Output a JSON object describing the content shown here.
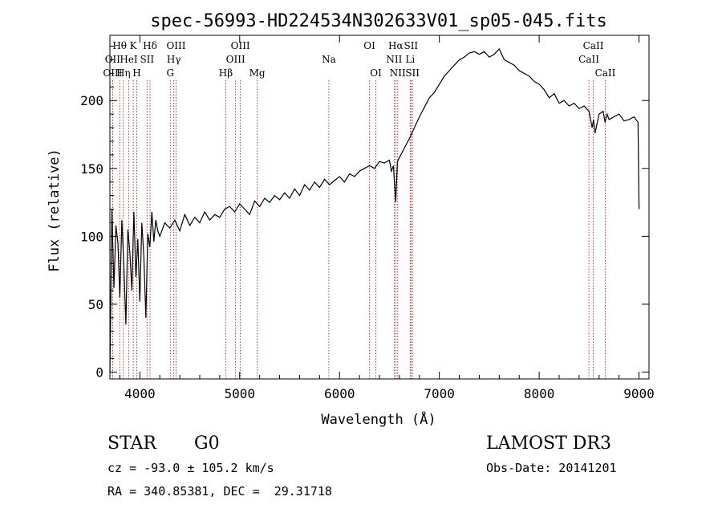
{
  "chart_data": {
    "type": "line",
    "title": "spec-56993-HD224534N302633V01_sp05-045.fits",
    "xlabel": "Wavelength (Å)",
    "ylabel": "Flux (relative)",
    "xlim": [
      3700,
      9100
    ],
    "ylim": [
      -5,
      248
    ],
    "x_ticks": [
      4000,
      5000,
      6000,
      7000,
      8000,
      9000
    ],
    "y_ticks": [
      0,
      50,
      100,
      150,
      200
    ],
    "grid": false,
    "series": [
      {
        "name": "flux",
        "x": [
          3700,
          3720,
          3740,
          3760,
          3780,
          3800,
          3820,
          3840,
          3860,
          3880,
          3900,
          3920,
          3940,
          3960,
          3980,
          4000,
          4020,
          4040,
          4060,
          4080,
          4100,
          4120,
          4140,
          4160,
          4180,
          4200,
          4250,
          4300,
          4350,
          4400,
          4450,
          4500,
          4550,
          4600,
          4650,
          4700,
          4750,
          4800,
          4850,
          4900,
          4950,
          5000,
          5050,
          5100,
          5150,
          5200,
          5250,
          5300,
          5350,
          5400,
          5450,
          5500,
          5550,
          5600,
          5650,
          5700,
          5750,
          5800,
          5850,
          5900,
          5950,
          6000,
          6050,
          6100,
          6150,
          6200,
          6250,
          6300,
          6350,
          6400,
          6450,
          6500,
          6520,
          6540,
          6563,
          6580,
          6600,
          6650,
          6700,
          6750,
          6800,
          6850,
          6900,
          6950,
          7000,
          7050,
          7100,
          7150,
          7200,
          7250,
          7300,
          7350,
          7400,
          7450,
          7500,
          7550,
          7600,
          7650,
          7700,
          7750,
          7800,
          7850,
          7900,
          7950,
          8000,
          8050,
          8100,
          8150,
          8200,
          8250,
          8300,
          8350,
          8400,
          8450,
          8500,
          8530,
          8545,
          8560,
          8600,
          8640,
          8660,
          8680,
          8700,
          8750,
          8800,
          8850,
          8900,
          8950,
          8990,
          9000
        ],
        "y": [
          0,
          120,
          62,
          108,
          95,
          55,
          112,
          78,
          35,
          105,
          88,
          60,
          118,
          70,
          98,
          52,
          110,
          85,
          40,
          102,
          92,
          118,
          96,
          112,
          104,
          100,
          110,
          106,
          112,
          104,
          116,
          108,
          114,
          110,
          118,
          112,
          116,
          114,
          120,
          122,
          118,
          124,
          120,
          116,
          126,
          122,
          128,
          125,
          130,
          127,
          132,
          128,
          135,
          130,
          138,
          134,
          140,
          136,
          142,
          138,
          141,
          144,
          140,
          146,
          144,
          148,
          150,
          152,
          150,
          155,
          154,
          156,
          148,
          152,
          125,
          155,
          158,
          165,
          172,
          180,
          188,
          195,
          202,
          206,
          212,
          218,
          222,
          226,
          230,
          232,
          235,
          236,
          234,
          236,
          232,
          234,
          238,
          230,
          228,
          226,
          222,
          220,
          218,
          214,
          212,
          208,
          202,
          205,
          198,
          200,
          196,
          198,
          194,
          196,
          192,
          180,
          186,
          176,
          190,
          192,
          184,
          190,
          186,
          188,
          190,
          185,
          186,
          188,
          184,
          120
        ]
      }
    ],
    "spectral_lines": [
      {
        "label": "Hθ",
        "x": 3798,
        "row": 1
      },
      {
        "label": "OII",
        "x": 3727,
        "row": 2
      },
      {
        "label": "OIII",
        "x": 3727,
        "row": 3
      },
      {
        "label": "K",
        "x": 3934,
        "row": 1
      },
      {
        "label": "HeI",
        "x": 3889,
        "row": 2
      },
      {
        "label": "Hη",
        "x": 3835,
        "row": 3
      },
      {
        "label": "SII",
        "x": 4072,
        "row": 2
      },
      {
        "label": "H",
        "x": 3969,
        "row": 3
      },
      {
        "label": "Hδ",
        "x": 4102,
        "row": 1
      },
      {
        "label": "OIII",
        "x": 4363,
        "row": 1
      },
      {
        "label": "Hγ",
        "x": 4340,
        "row": 2
      },
      {
        "label": "G",
        "x": 4305,
        "row": 3
      },
      {
        "label": "Hβ",
        "x": 4861,
        "row": 3
      },
      {
        "label": "OIII",
        "x": 5007,
        "row": 1
      },
      {
        "label": "OIII",
        "x": 4959,
        "row": 2
      },
      {
        "label": "Mg",
        "x": 5175,
        "row": 3
      },
      {
        "label": "Na",
        "x": 5893,
        "row": 2
      },
      {
        "label": "OI",
        "x": 6300,
        "row": 1
      },
      {
        "label": "OI",
        "x": 6364,
        "row": 3
      },
      {
        "label": "Hα",
        "x": 6563,
        "row": 1
      },
      {
        "label": "SII",
        "x": 6716,
        "row": 1
      },
      {
        "label": "NII",
        "x": 6548,
        "row": 2
      },
      {
        "label": "Li",
        "x": 6708,
        "row": 2
      },
      {
        "label": "NII",
        "x": 6583,
        "row": 3
      },
      {
        "label": "SII",
        "x": 6731,
        "row": 3
      },
      {
        "label": "CaII",
        "x": 8542,
        "row": 1
      },
      {
        "label": "CaII",
        "x": 8498,
        "row": 2
      },
      {
        "label": "CaII",
        "x": 8662,
        "row": 3
      }
    ],
    "colors": {
      "line": "#000000",
      "marker_lines": "#cc0000"
    }
  },
  "info": {
    "object_class": "STAR",
    "subclass": "G0",
    "survey": "LAMOST DR3",
    "velocity": "cz = -93.0 ± 105.2 km/s",
    "obs_date": "Obs-Date: 20141201",
    "coords": "RA = 340.85381, DEC =  29.31718"
  }
}
